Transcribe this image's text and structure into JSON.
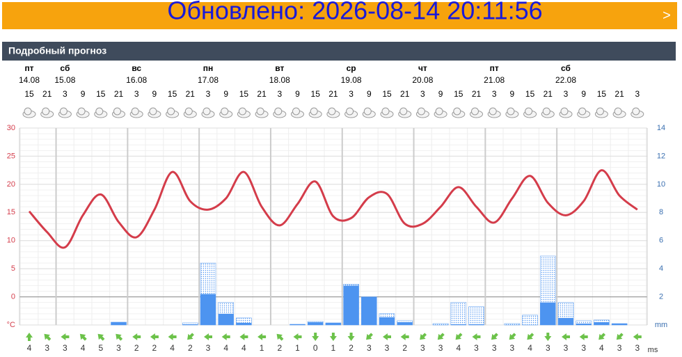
{
  "banner": {
    "text": "Обновлено: 2026-08-14 20:11:56",
    "arrow": ">"
  },
  "chart_data": {
    "type": "combo",
    "title": "Подробный прогноз",
    "categories": [
      "15",
      "21",
      "3",
      "9",
      "15",
      "21",
      "3",
      "9",
      "15",
      "21",
      "3",
      "9",
      "15",
      "21",
      "3",
      "9",
      "15",
      "21",
      "3",
      "9",
      "15",
      "21",
      "3",
      "9",
      "15",
      "21",
      "3",
      "9",
      "15",
      "21",
      "3",
      "9",
      "15",
      "21",
      "3"
    ],
    "day_names": [
      "пт",
      null,
      "сб",
      null,
      null,
      null,
      "вс",
      null,
      null,
      null,
      "пн",
      null,
      null,
      null,
      "вт",
      null,
      null,
      null,
      "ср",
      null,
      null,
      null,
      "чт",
      null,
      null,
      null,
      "пт",
      null,
      null,
      null,
      "сб",
      null,
      null,
      null,
      null
    ],
    "day_dates": [
      "14.08",
      null,
      "15.08",
      null,
      null,
      null,
      "16.08",
      null,
      null,
      null,
      "17.08",
      null,
      null,
      null,
      "18.08",
      null,
      null,
      null,
      "19.08",
      null,
      null,
      null,
      "20.08",
      null,
      null,
      null,
      "21.08",
      null,
      null,
      null,
      "22.08",
      null,
      null,
      null,
      null
    ],
    "series": [
      {
        "name": "temperature",
        "color": "#d43c4a",
        "values": [
          15.2,
          11.5,
          8.8,
          14.5,
          18.2,
          13.3,
          10.6,
          15.5,
          22.2,
          17,
          15.5,
          17.5,
          22.2,
          16,
          12.7,
          16.5,
          20.5,
          14.3,
          14,
          17.7,
          18.3,
          13,
          13,
          16,
          19.5,
          16,
          13.2,
          17.5,
          21.5,
          16.7,
          14.5,
          17,
          22.5,
          18,
          15.5
        ]
      },
      {
        "name": "precipitation",
        "color": "#4d94f0",
        "axis": "y2",
        "values": [
          0,
          0,
          0,
          0,
          0,
          0.2,
          0,
          0,
          0,
          0.05,
          2.2,
          0.8,
          0.15,
          0,
          0,
          0.05,
          0.2,
          0.15,
          2.8,
          2.0,
          0.55,
          0.2,
          0,
          0,
          0.05,
          0.05,
          0,
          0,
          0,
          1.6,
          0.5,
          0.1,
          0.2,
          0.1,
          0
        ]
      },
      {
        "name": "precipitation-max",
        "color": "#4d94f0",
        "axis": "y2",
        "values": [
          0,
          0,
          0,
          0,
          0,
          0.2,
          0,
          0,
          0,
          0.15,
          4.4,
          1.6,
          0.5,
          0,
          0,
          0.05,
          0.25,
          0.15,
          2.9,
          2.0,
          0.8,
          0.3,
          0,
          0.1,
          1.6,
          1.3,
          0,
          0.1,
          0.7,
          4.9,
          1.6,
          0.3,
          0.35,
          0.1,
          0
        ]
      }
    ],
    "wind_speed": [
      4,
      3,
      3,
      4,
      5,
      3,
      2,
      2,
      4,
      2,
      3,
      4,
      4,
      1,
      2,
      1,
      0,
      1,
      2,
      3,
      3,
      2,
      3,
      3,
      4,
      3,
      3,
      3,
      4,
      3,
      3,
      3,
      4,
      3,
      3
    ],
    "wind_dir": [
      180,
      135,
      90,
      135,
      135,
      135,
      90,
      90,
      90,
      45,
      90,
      90,
      90,
      90,
      135,
      90,
      0,
      0,
      0,
      45,
      90,
      90,
      45,
      45,
      45,
      90,
      45,
      45,
      45,
      0,
      90,
      90,
      45,
      45,
      90
    ],
    "wind_unit": "ms",
    "ylim": [
      -5,
      30
    ],
    "yticks": [
      {
        "value": -5,
        "label": "°C"
      },
      0,
      5,
      10,
      15,
      20,
      25,
      30
    ],
    "y2lim": [
      0,
      14
    ],
    "y2ticks": [
      {
        "value": 0,
        "label": "mm"
      },
      2,
      4,
      6,
      8,
      10,
      12,
      14
    ],
    "grid": true
  }
}
